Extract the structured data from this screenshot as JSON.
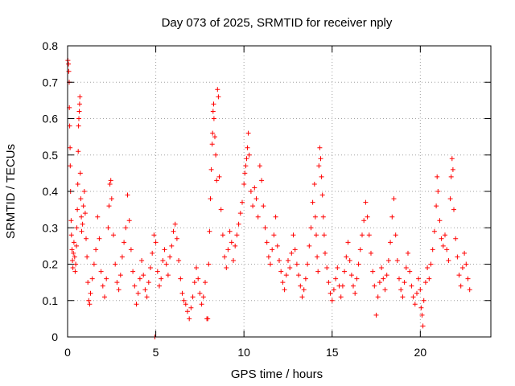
{
  "chart_data": {
    "type": "scatter",
    "title": "Day 073 of 2025, SRMTID for receiver nply",
    "xlabel": "GPS time / hours",
    "ylabel": "SRMTID / TECUs",
    "xlim": [
      0,
      24
    ],
    "ylim": [
      0,
      0.8
    ],
    "xticks": [
      0,
      5,
      10,
      15,
      20
    ],
    "xtick_labels": [
      "0",
      "5",
      "10",
      "15",
      "20"
    ],
    "yticks": [
      0,
      0.1,
      0.2,
      0.3,
      0.4,
      0.5,
      0.6,
      0.7,
      0.8
    ],
    "ytick_labels": [
      "0",
      "0.1",
      "0.2",
      "0.3",
      "0.4",
      "0.5",
      "0.6",
      "0.7",
      "0.8"
    ],
    "grid": true,
    "marker": "+",
    "color": "#ff0000",
    "series": [
      {
        "name": "SRMTID",
        "points": [
          [
            0.02,
            0.76
          ],
          [
            0.05,
            0.75
          ],
          [
            0.07,
            0.73
          ],
          [
            0.09,
            0.7
          ],
          [
            0.1,
            0.63
          ],
          [
            0.12,
            0.58
          ],
          [
            0.14,
            0.52
          ],
          [
            0.15,
            0.47
          ],
          [
            0.17,
            0.4
          ],
          [
            0.2,
            0.32
          ],
          [
            0.22,
            0.28
          ],
          [
            0.25,
            0.24
          ],
          [
            0.28,
            0.21
          ],
          [
            0.3,
            0.19
          ],
          [
            0.33,
            0.23
          ],
          [
            0.36,
            0.26
          ],
          [
            0.4,
            0.22
          ],
          [
            0.43,
            0.18
          ],
          [
            0.46,
            0.2
          ],
          [
            0.5,
            0.25
          ],
          [
            0.52,
            0.3
          ],
          [
            0.55,
            0.35
          ],
          [
            0.58,
            0.42
          ],
          [
            0.6,
            0.51
          ],
          [
            0.62,
            0.58
          ],
          [
            0.64,
            0.6
          ],
          [
            0.66,
            0.62
          ],
          [
            0.68,
            0.64
          ],
          [
            0.7,
            0.66
          ],
          [
            0.72,
            0.45
          ],
          [
            0.75,
            0.38
          ],
          [
            0.78,
            0.33
          ],
          [
            0.8,
            0.29
          ],
          [
            0.85,
            0.31
          ],
          [
            0.9,
            0.36
          ],
          [
            0.95,
            0.4
          ],
          [
            1.0,
            0.34
          ],
          [
            1.05,
            0.27
          ],
          [
            1.1,
            0.22
          ],
          [
            1.15,
            0.15
          ],
          [
            1.2,
            0.1
          ],
          [
            1.25,
            0.09
          ],
          [
            1.3,
            0.12
          ],
          [
            1.4,
            0.16
          ],
          [
            1.5,
            0.2
          ],
          [
            1.6,
            0.24
          ],
          [
            1.7,
            0.33
          ],
          [
            1.8,
            0.27
          ],
          [
            1.9,
            0.18
          ],
          [
            2.0,
            0.14
          ],
          [
            2.1,
            0.11
          ],
          [
            2.2,
            0.16
          ],
          [
            2.3,
            0.3
          ],
          [
            2.35,
            0.36
          ],
          [
            2.4,
            0.42
          ],
          [
            2.45,
            0.43
          ],
          [
            2.5,
            0.38
          ],
          [
            2.6,
            0.28
          ],
          [
            2.7,
            0.2
          ],
          [
            2.8,
            0.15
          ],
          [
            2.9,
            0.13
          ],
          [
            3.0,
            0.17
          ],
          [
            3.1,
            0.22
          ],
          [
            3.2,
            0.26
          ],
          [
            3.3,
            0.3
          ],
          [
            3.4,
            0.39
          ],
          [
            3.5,
            0.32
          ],
          [
            3.6,
            0.24
          ],
          [
            3.7,
            0.18
          ],
          [
            3.8,
            0.14
          ],
          [
            3.9,
            0.09
          ],
          [
            4.0,
            0.12
          ],
          [
            4.1,
            0.16
          ],
          [
            4.2,
            0.21
          ],
          [
            4.3,
            0.17
          ],
          [
            4.4,
            0.13
          ],
          [
            4.5,
            0.11
          ],
          [
            4.6,
            0.15
          ],
          [
            4.7,
            0.19
          ],
          [
            4.8,
            0.23
          ],
          [
            4.9,
            0.28
          ],
          [
            4.95,
            0.0
          ],
          [
            5.0,
            0.26
          ],
          [
            5.1,
            0.18
          ],
          [
            5.2,
            0.14
          ],
          [
            5.3,
            0.16
          ],
          [
            5.4,
            0.21
          ],
          [
            5.5,
            0.24
          ],
          [
            5.6,
            0.2
          ],
          [
            5.7,
            0.17
          ],
          [
            5.8,
            0.22
          ],
          [
            5.9,
            0.25
          ],
          [
            6.0,
            0.29
          ],
          [
            6.1,
            0.31
          ],
          [
            6.2,
            0.27
          ],
          [
            6.3,
            0.21
          ],
          [
            6.4,
            0.16
          ],
          [
            6.5,
            0.12
          ],
          [
            6.6,
            0.1
          ],
          [
            6.7,
            0.09
          ],
          [
            6.8,
            0.07
          ],
          [
            6.9,
            0.05
          ],
          [
            7.0,
            0.08
          ],
          [
            7.1,
            0.11
          ],
          [
            7.2,
            0.15
          ],
          [
            7.3,
            0.19
          ],
          [
            7.4,
            0.16
          ],
          [
            7.5,
            0.12
          ],
          [
            7.6,
            0.09
          ],
          [
            7.7,
            0.11
          ],
          [
            7.8,
            0.15
          ],
          [
            7.9,
            0.05
          ],
          [
            7.95,
            0.05
          ],
          [
            8.0,
            0.2
          ],
          [
            8.05,
            0.29
          ],
          [
            8.1,
            0.38
          ],
          [
            8.15,
            0.46
          ],
          [
            8.2,
            0.53
          ],
          [
            8.22,
            0.56
          ],
          [
            8.25,
            0.62
          ],
          [
            8.28,
            0.64
          ],
          [
            8.3,
            0.6
          ],
          [
            8.35,
            0.55
          ],
          [
            8.4,
            0.5
          ],
          [
            8.45,
            0.43
          ],
          [
            8.5,
            0.68
          ],
          [
            8.55,
            0.66
          ],
          [
            8.6,
            0.44
          ],
          [
            8.7,
            0.35
          ],
          [
            8.8,
            0.28
          ],
          [
            8.9,
            0.22
          ],
          [
            9.0,
            0.19
          ],
          [
            9.1,
            0.24
          ],
          [
            9.2,
            0.29
          ],
          [
            9.3,
            0.26
          ],
          [
            9.4,
            0.21
          ],
          [
            9.5,
            0.25
          ],
          [
            9.6,
            0.28
          ],
          [
            9.7,
            0.31
          ],
          [
            9.8,
            0.34
          ],
          [
            9.9,
            0.37
          ],
          [
            10.0,
            0.42
          ],
          [
            10.05,
            0.45
          ],
          [
            10.1,
            0.47
          ],
          [
            10.15,
            0.49
          ],
          [
            10.2,
            0.52
          ],
          [
            10.25,
            0.56
          ],
          [
            10.3,
            0.5
          ],
          [
            10.4,
            0.4
          ],
          [
            10.5,
            0.36
          ],
          [
            10.6,
            0.41
          ],
          [
            10.7,
            0.38
          ],
          [
            10.8,
            0.33
          ],
          [
            10.9,
            0.47
          ],
          [
            11.0,
            0.43
          ],
          [
            11.1,
            0.36
          ],
          [
            11.2,
            0.3
          ],
          [
            11.3,
            0.26
          ],
          [
            11.4,
            0.22
          ],
          [
            11.5,
            0.2
          ],
          [
            11.6,
            0.24
          ],
          [
            11.7,
            0.28
          ],
          [
            11.8,
            0.33
          ],
          [
            11.9,
            0.25
          ],
          [
            12.0,
            0.21
          ],
          [
            12.1,
            0.18
          ],
          [
            12.2,
            0.15
          ],
          [
            12.3,
            0.13
          ],
          [
            12.4,
            0.17
          ],
          [
            12.5,
            0.21
          ],
          [
            12.6,
            0.19
          ],
          [
            12.7,
            0.23
          ],
          [
            12.8,
            0.28
          ],
          [
            12.9,
            0.24
          ],
          [
            13.0,
            0.2
          ],
          [
            13.1,
            0.17
          ],
          [
            13.2,
            0.14
          ],
          [
            13.3,
            0.11
          ],
          [
            13.4,
            0.13
          ],
          [
            13.5,
            0.16
          ],
          [
            13.6,
            0.2
          ],
          [
            13.7,
            0.25
          ],
          [
            13.8,
            0.3
          ],
          [
            13.9,
            0.37
          ],
          [
            14.0,
            0.42
          ],
          [
            14.05,
            0.33
          ],
          [
            14.1,
            0.28
          ],
          [
            14.15,
            0.22
          ],
          [
            14.2,
            0.18
          ],
          [
            14.25,
            0.47
          ],
          [
            14.3,
            0.52
          ],
          [
            14.35,
            0.49
          ],
          [
            14.4,
            0.44
          ],
          [
            14.45,
            0.39
          ],
          [
            14.5,
            0.33
          ],
          [
            14.55,
            0.28
          ],
          [
            14.6,
            0.23
          ],
          [
            14.7,
            0.19
          ],
          [
            14.8,
            0.15
          ],
          [
            14.9,
            0.12
          ],
          [
            15.0,
            0.1
          ],
          [
            15.1,
            0.13
          ],
          [
            15.2,
            0.16
          ],
          [
            15.3,
            0.19
          ],
          [
            15.4,
            0.14
          ],
          [
            15.5,
            0.11
          ],
          [
            15.6,
            0.14
          ],
          [
            15.7,
            0.18
          ],
          [
            15.8,
            0.22
          ],
          [
            15.9,
            0.26
          ],
          [
            16.0,
            0.21
          ],
          [
            16.1,
            0.17
          ],
          [
            16.2,
            0.14
          ],
          [
            16.3,
            0.12
          ],
          [
            16.4,
            0.16
          ],
          [
            16.5,
            0.2
          ],
          [
            16.6,
            0.24
          ],
          [
            16.7,
            0.28
          ],
          [
            16.8,
            0.32
          ],
          [
            16.9,
            0.37
          ],
          [
            17.0,
            0.33
          ],
          [
            17.1,
            0.28
          ],
          [
            17.2,
            0.23
          ],
          [
            17.3,
            0.18
          ],
          [
            17.4,
            0.14
          ],
          [
            17.5,
            0.06
          ],
          [
            17.6,
            0.11
          ],
          [
            17.7,
            0.15
          ],
          [
            17.8,
            0.19
          ],
          [
            17.9,
            0.16
          ],
          [
            18.0,
            0.13
          ],
          [
            18.1,
            0.17
          ],
          [
            18.2,
            0.21
          ],
          [
            18.3,
            0.26
          ],
          [
            18.4,
            0.33
          ],
          [
            18.5,
            0.38
          ],
          [
            18.6,
            0.28
          ],
          [
            18.7,
            0.21
          ],
          [
            18.8,
            0.16
          ],
          [
            18.9,
            0.13
          ],
          [
            19.0,
            0.11
          ],
          [
            19.1,
            0.15
          ],
          [
            19.2,
            0.19
          ],
          [
            19.3,
            0.23
          ],
          [
            19.4,
            0.18
          ],
          [
            19.5,
            0.14
          ],
          [
            19.6,
            0.11
          ],
          [
            19.7,
            0.09
          ],
          [
            19.8,
            0.12
          ],
          [
            19.9,
            0.16
          ],
          [
            20.0,
            0.13
          ],
          [
            20.05,
            0.08
          ],
          [
            20.1,
            0.06
          ],
          [
            20.15,
            0.03
          ],
          [
            20.2,
            0.1
          ],
          [
            20.3,
            0.15
          ],
          [
            20.4,
            0.19
          ],
          [
            20.5,
            0.16
          ],
          [
            20.6,
            0.2
          ],
          [
            20.7,
            0.24
          ],
          [
            20.8,
            0.29
          ],
          [
            20.9,
            0.36
          ],
          [
            20.95,
            0.44
          ],
          [
            21.0,
            0.4
          ],
          [
            21.1,
            0.32
          ],
          [
            21.2,
            0.27
          ],
          [
            21.3,
            0.25
          ],
          [
            21.4,
            0.28
          ],
          [
            21.5,
            0.24
          ],
          [
            21.6,
            0.21
          ],
          [
            21.7,
            0.38
          ],
          [
            21.75,
            0.44
          ],
          [
            21.8,
            0.49
          ],
          [
            21.85,
            0.46
          ],
          [
            21.9,
            0.35
          ],
          [
            22.0,
            0.27
          ],
          [
            22.1,
            0.22
          ],
          [
            22.2,
            0.17
          ],
          [
            22.3,
            0.14
          ],
          [
            22.4,
            0.19
          ],
          [
            22.5,
            0.23
          ],
          [
            22.6,
            0.2
          ],
          [
            22.7,
            0.16
          ],
          [
            22.8,
            0.13
          ]
        ]
      }
    ]
  }
}
